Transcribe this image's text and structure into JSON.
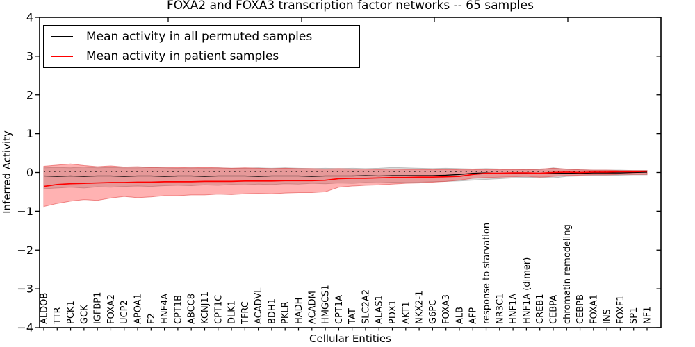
{
  "title": "FOXA2 and FOXA3 transcription factor networks -- 65 samples",
  "legend": {
    "items": [
      {
        "label": "Mean activity in all permuted samples",
        "color": "#000000"
      },
      {
        "label": "Mean activity in patient samples",
        "color": "#ff0000"
      }
    ]
  },
  "axes": {
    "xlabel": "Cellular Entities",
    "ylabel": "Inferred Activity"
  },
  "chart_data": {
    "type": "line",
    "title": "FOXA2 and FOXA3 transcription factor networks -- 65 samples",
    "xlabel": "Cellular Entities",
    "ylabel": "Inferred Activity",
    "ylim": [
      -4,
      4
    ],
    "yticks": [
      -4,
      -3,
      -2,
      -1,
      0,
      1,
      2,
      3,
      4
    ],
    "grid": false,
    "legend_position": "upper left",
    "categories": [
      "ALDOB",
      "TTR",
      "PCK1",
      "GCK",
      "IGFBP1",
      "FOXA2",
      "UCP2",
      "APOA1",
      "F2",
      "HNF4A",
      "CPT1B",
      "ABCC8",
      "KCNJ11",
      "CPT1C",
      "DLK1",
      "TFRC",
      "ACADVL",
      "BDH1",
      "PKLR",
      "HADH",
      "ACADM",
      "HMGCS1",
      "CPT1A",
      "TAT",
      "SLC2A2",
      "ALAS1",
      "PDX1",
      "AKT1",
      "NKX2-1",
      "G6PC",
      "FOXA3",
      "ALB",
      "AFP",
      "response to starvation",
      "NR3C1",
      "HNF1A",
      "HNF1A (dimer)",
      "CREB1",
      "CEBPA",
      "chromatin remodeling",
      "CEBPB",
      "FOXA1",
      "INS",
      "FOXF1",
      "SP1",
      "NF1"
    ],
    "series": [
      {
        "name": "Mean activity in all permuted samples",
        "color": "#000000",
        "values": [
          -0.09,
          -0.1,
          -0.09,
          -0.1,
          -0.09,
          -0.09,
          -0.1,
          -0.09,
          -0.09,
          -0.1,
          -0.09,
          -0.09,
          -0.1,
          -0.09,
          -0.09,
          -0.09,
          -0.1,
          -0.09,
          -0.09,
          -0.09,
          -0.1,
          -0.09,
          -0.09,
          -0.09,
          -0.08,
          -0.09,
          -0.08,
          -0.08,
          -0.08,
          -0.08,
          -0.07,
          -0.05,
          -0.02,
          -0.01,
          -0.03,
          -0.03,
          -0.03,
          -0.03,
          -0.02,
          -0.02,
          -0.02,
          -0.01,
          -0.01,
          -0.01,
          0.0,
          0.01
        ]
      },
      {
        "name": "Mean activity in patient samples",
        "color": "#ff0000",
        "values": [
          -0.36,
          -0.31,
          -0.29,
          -0.28,
          -0.27,
          -0.26,
          -0.26,
          -0.25,
          -0.25,
          -0.24,
          -0.24,
          -0.24,
          -0.23,
          -0.23,
          -0.23,
          -0.22,
          -0.22,
          -0.22,
          -0.21,
          -0.21,
          -0.21,
          -0.2,
          -0.16,
          -0.15,
          -0.15,
          -0.14,
          -0.13,
          -0.13,
          -0.12,
          -0.12,
          -0.11,
          -0.1,
          -0.05,
          -0.02,
          -0.02,
          -0.01,
          -0.01,
          -0.02,
          0.0,
          0.01,
          0.0,
          0.01,
          0.01,
          0.02,
          0.02,
          0.03
        ]
      }
    ],
    "bands": [
      {
        "name": "permuted-samples-range",
        "fill": "rgba(125,125,125,0.28)",
        "edge": "rgba(130,130,130,0.45)",
        "upper": [
          0.12,
          0.13,
          0.12,
          0.14,
          0.12,
          0.13,
          0.12,
          0.12,
          0.13,
          0.12,
          0.11,
          0.12,
          0.11,
          0.12,
          0.11,
          0.11,
          0.12,
          0.11,
          0.12,
          0.11,
          0.1,
          0.11,
          0.1,
          0.11,
          0.1,
          0.11,
          0.13,
          0.12,
          0.11,
          0.1,
          0.11,
          0.1,
          0.09,
          0.1,
          0.09,
          0.08,
          0.08,
          0.07,
          0.12,
          0.08,
          0.07,
          0.06,
          0.06,
          0.06,
          0.05,
          0.05
        ],
        "lower": [
          -0.42,
          -0.4,
          -0.38,
          -0.4,
          -0.37,
          -0.38,
          -0.36,
          -0.35,
          -0.36,
          -0.34,
          -0.33,
          -0.34,
          -0.32,
          -0.33,
          -0.31,
          -0.32,
          -0.3,
          -0.31,
          -0.29,
          -0.3,
          -0.28,
          -0.29,
          -0.27,
          -0.28,
          -0.26,
          -0.27,
          -0.25,
          -0.26,
          -0.25,
          -0.24,
          -0.23,
          -0.22,
          -0.2,
          -0.18,
          -0.16,
          -0.14,
          -0.13,
          -0.12,
          -0.14,
          -0.1,
          -0.09,
          -0.08,
          -0.08,
          -0.07,
          -0.06,
          -0.06
        ]
      },
      {
        "name": "patient-samples-range",
        "fill": "rgba(255,0,0,0.30)",
        "edge": "rgba(225,60,60,0.55)",
        "upper": [
          0.16,
          0.19,
          0.22,
          0.18,
          0.15,
          0.17,
          0.14,
          0.15,
          0.13,
          0.14,
          0.13,
          0.12,
          0.13,
          0.12,
          0.11,
          0.12,
          0.11,
          0.1,
          0.11,
          0.1,
          0.1,
          0.09,
          0.1,
          0.09,
          0.09,
          0.08,
          0.09,
          0.08,
          0.08,
          0.07,
          0.08,
          0.07,
          0.07,
          0.08,
          0.07,
          0.08,
          0.07,
          0.09,
          0.11,
          0.09,
          0.07,
          0.06,
          0.06,
          0.05,
          0.05,
          0.05
        ],
        "lower": [
          -0.88,
          -0.8,
          -0.74,
          -0.7,
          -0.72,
          -0.66,
          -0.62,
          -0.65,
          -0.63,
          -0.6,
          -0.6,
          -0.58,
          -0.58,
          -0.56,
          -0.57,
          -0.55,
          -0.54,
          -0.55,
          -0.53,
          -0.52,
          -0.52,
          -0.5,
          -0.38,
          -0.35,
          -0.33,
          -0.32,
          -0.3,
          -0.28,
          -0.27,
          -0.25,
          -0.23,
          -0.2,
          -0.15,
          -0.13,
          -0.12,
          -0.11,
          -0.1,
          -0.12,
          -0.1,
          -0.08,
          -0.07,
          -0.06,
          -0.06,
          -0.05,
          -0.05,
          -0.05
        ]
      }
    ],
    "reference_line": {
      "style": "dotted",
      "color": "#000000",
      "value": 0.03
    }
  }
}
